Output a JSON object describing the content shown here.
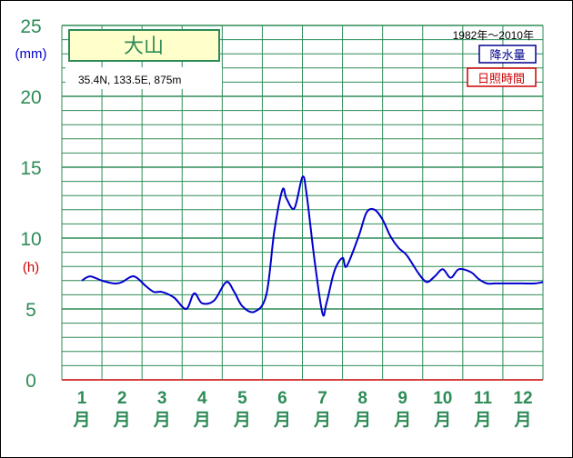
{
  "chart_data": {
    "type": "line",
    "station": "大山",
    "location": "35.4N,  133.5E,  875m",
    "period": "1982年～2010年",
    "units": {
      "precip": "(mm)",
      "sun": "(h)"
    },
    "legend": [
      {
        "label": "降水量",
        "color": "#00008b"
      },
      {
        "label": "日照時間",
        "color": "#cc0000"
      }
    ],
    "yticks": [
      "0",
      "5",
      "10",
      "15",
      "20",
      "25"
    ],
    "ylim": [
      0,
      25
    ],
    "grid": true,
    "months": [
      "1",
      "2",
      "3",
      "4",
      "5",
      "6",
      "7",
      "8",
      "9",
      "10",
      "11",
      "12"
    ],
    "month_suffix": "月",
    "series": [
      {
        "name": "降水量",
        "color": "#0000cc",
        "x": [
          1.0,
          1.2,
          1.5,
          1.8,
          2.0,
          2.3,
          2.6,
          2.8,
          3.0,
          3.3,
          3.6,
          3.8,
          4.0,
          4.3,
          4.6,
          4.8,
          5.0,
          5.3,
          5.6,
          5.8,
          6.0,
          6.1,
          6.3,
          6.5,
          6.6,
          6.8,
          7.0,
          7.1,
          7.3,
          7.5,
          7.6,
          7.9,
          8.1,
          8.3,
          8.5,
          8.7,
          8.9,
          9.1,
          9.4,
          9.6,
          9.8,
          10.0,
          10.2,
          10.4,
          10.7,
          10.9,
          11.1,
          11.3,
          11.6,
          11.8,
          12.0,
          12.3,
          12.5
        ],
        "y": [
          7.0,
          7.3,
          7.0,
          6.8,
          6.9,
          7.3,
          6.6,
          6.2,
          6.2,
          5.8,
          5.0,
          6.1,
          5.4,
          5.6,
          6.9,
          6.2,
          5.2,
          4.8,
          6.0,
          10.5,
          13.4,
          12.8,
          12.1,
          14.3,
          13.2,
          8.5,
          4.7,
          5.4,
          7.7,
          8.6,
          8.0,
          10.1,
          11.8,
          12.0,
          11.3,
          10.1,
          9.3,
          8.8,
          7.5,
          6.9,
          7.3,
          7.8,
          7.2,
          7.8,
          7.6,
          7.1,
          6.8,
          6.8,
          6.8,
          6.8,
          6.8,
          6.8,
          6.9
        ]
      }
    ]
  }
}
